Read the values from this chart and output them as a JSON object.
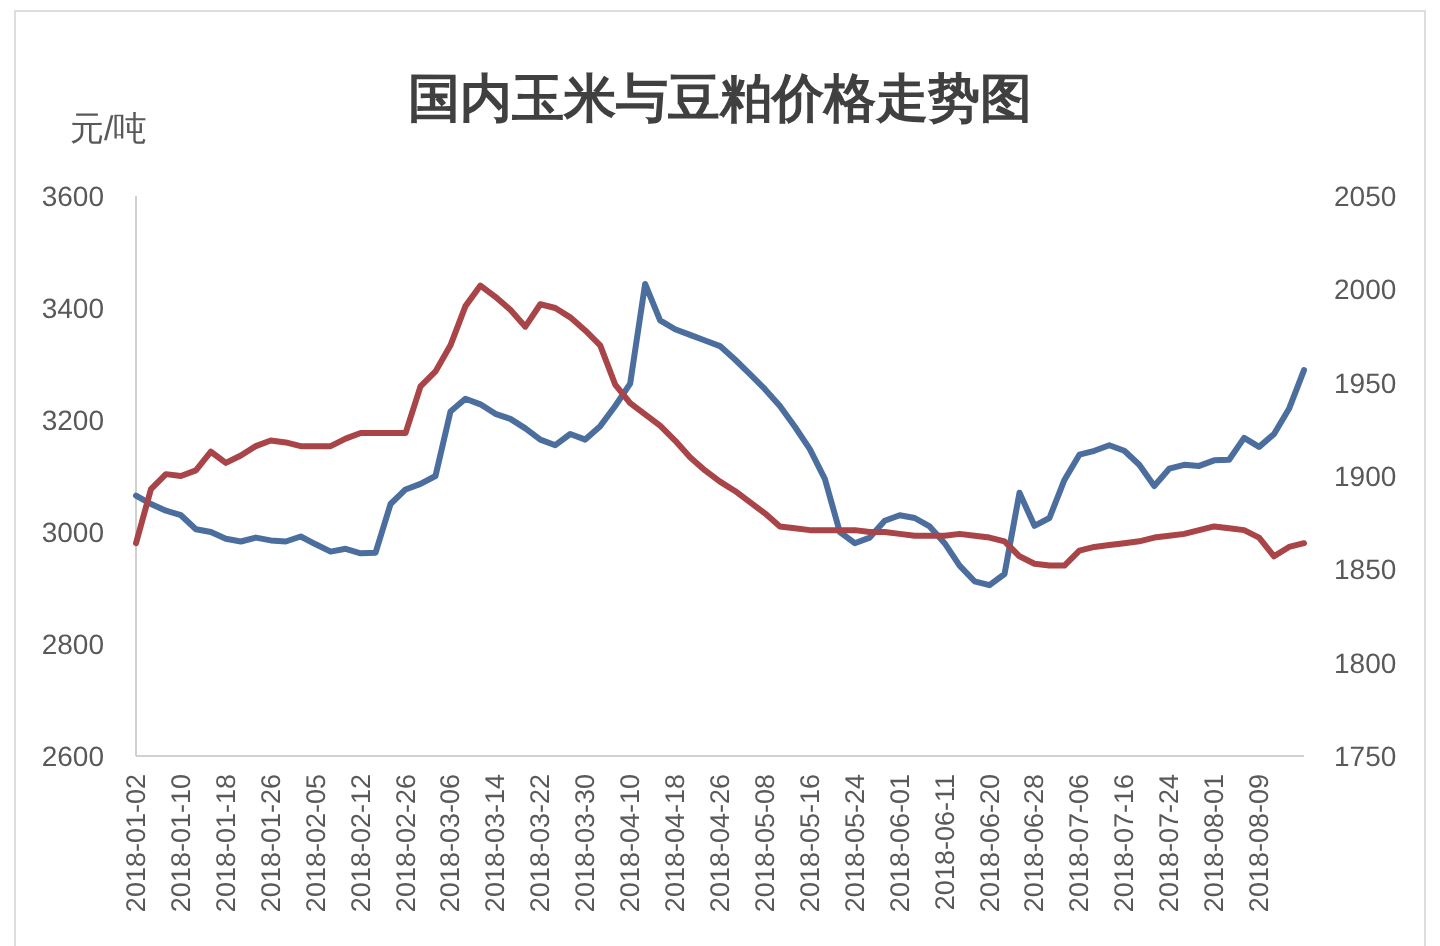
{
  "chart_data": {
    "type": "line",
    "title": "国内玉米与豆粕价格走势图",
    "ylabel": "元/吨",
    "categories": [
      "2018-01-02",
      null,
      null,
      "2018-01-10",
      null,
      null,
      "2018-01-18",
      null,
      null,
      "2018-01-26",
      null,
      null,
      "2018-02-05",
      null,
      null,
      "2018-02-12",
      null,
      null,
      "2018-02-26",
      null,
      null,
      "2018-03-06",
      null,
      null,
      "2018-03-14",
      null,
      null,
      "2018-03-22",
      null,
      null,
      "2018-03-30",
      null,
      null,
      "2018-04-10",
      null,
      null,
      "2018-04-18",
      null,
      null,
      "2018-04-26",
      null,
      null,
      "2018-05-08",
      null,
      null,
      "2018-05-16",
      null,
      null,
      "2018-05-24",
      null,
      null,
      "2018-06-01",
      null,
      null,
      "2018-06-11",
      null,
      null,
      "2018-06-20",
      null,
      null,
      "2018-06-28",
      null,
      null,
      "2018-07-06",
      null,
      null,
      "2018-07-16",
      null,
      null,
      "2018-07-24",
      null,
      null,
      "2018-08-01",
      null,
      null,
      "2018-08-09",
      null,
      null,
      null
    ],
    "series": [
      {
        "color": "#4b6e9e",
        "values": [
          3065,
          3050,
          3038,
          3030,
          3005,
          3000,
          2988,
          2983,
          2990,
          2985,
          2983,
          2992,
          2978,
          2965,
          2970,
          2962,
          2963,
          3050,
          3076,
          3086,
          3100,
          3215,
          3238,
          3228,
          3211,
          3202,
          3185,
          3165,
          3155,
          3175,
          3165,
          3189,
          3225,
          3265,
          3443,
          3378,
          3362,
          3352,
          3342,
          3332,
          3308,
          3282,
          3255,
          3225,
          3188,
          3148,
          3095,
          3000,
          2980,
          2990,
          3020,
          3030,
          3025,
          3010,
          2980,
          2940,
          2912,
          2905,
          2925,
          3070,
          3011,
          3025,
          3093,
          3138,
          3145,
          3155,
          3145,
          3120,
          3082,
          3113,
          3120,
          3118,
          3128,
          3129,
          3168,
          3152,
          3175,
          3220,
          3289
        ]
      },
      {
        "color": "#a94448",
        "axis": "y2",
        "values": [
          1864,
          1893,
          1901,
          1900,
          1903,
          1913,
          1907,
          1911,
          1916,
          1919,
          1918,
          1916,
          1916,
          1916,
          1920,
          1923,
          1923,
          1923,
          1923,
          1948,
          1956,
          1970,
          1991,
          2002,
          1996,
          1989,
          1980,
          1992,
          1990,
          1985,
          1978,
          1970,
          1949,
          1939,
          1933,
          1927,
          1919,
          1910,
          1903,
          1897,
          1892,
          1886,
          1880,
          1873,
          1872,
          1871,
          1871,
          1871,
          1871,
          1870,
          1870,
          1869,
          1868,
          1868,
          1868,
          1869,
          1868,
          1867,
          1865,
          1857,
          1853,
          1852,
          1852,
          1860,
          1862,
          1863,
          1864,
          1865,
          1867,
          1868,
          1869,
          1871,
          1873,
          1872,
          1871,
          1867,
          1857,
          1862,
          1864
        ]
      }
    ],
    "ylim": [
      2600,
      3600
    ],
    "yticks": [
      2600,
      2800,
      3000,
      3200,
      3400,
      3600
    ],
    "y2lim": [
      1750,
      2050
    ],
    "y2ticks": [
      1750,
      1800,
      1850,
      1900,
      1950,
      2000,
      2050
    ],
    "line_style": "solid"
  }
}
